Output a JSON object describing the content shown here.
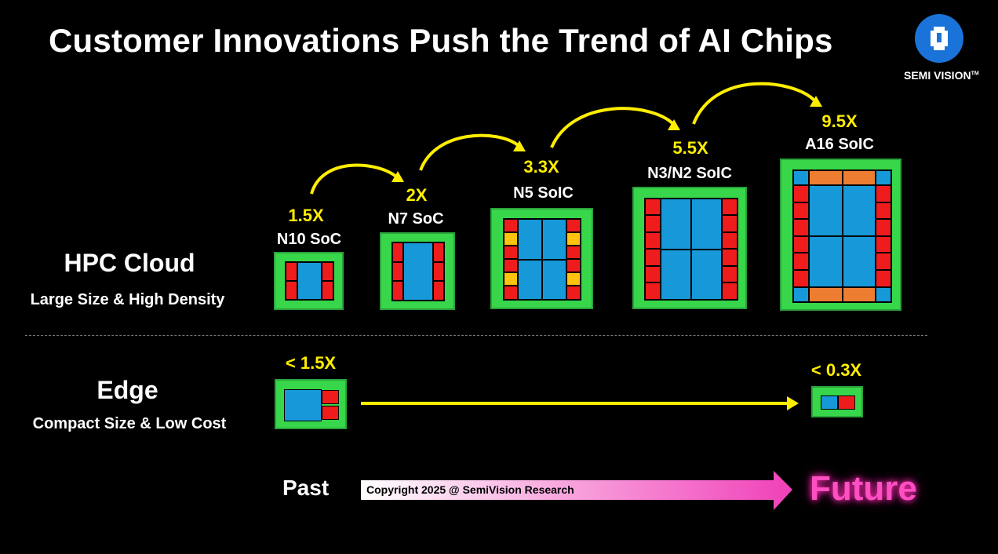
{
  "title": "Customer Innovations Push the Trend of AI Chips",
  "logo": {
    "text": "SEMI VISION",
    "tm": "TM"
  },
  "hpc": {
    "title": "HPC Cloud",
    "subtitle": "Large Size & High Density"
  },
  "edge": {
    "title": "Edge",
    "subtitle": "Compact Size & Low Cost"
  },
  "hpc_chips": [
    {
      "name": "N10 SoC",
      "multiplier": "1.5X"
    },
    {
      "name": "N7 SoC",
      "multiplier": "2X"
    },
    {
      "name": "N5 SoIC",
      "multiplier": "3.3X"
    },
    {
      "name": "N3/N2 SoIC",
      "multiplier": "5.5X"
    },
    {
      "name": "A16 SoIC",
      "multiplier": "9.5X"
    }
  ],
  "edge_chips": [
    {
      "multiplier": "< 1.5X"
    },
    {
      "multiplier": "< 0.3X"
    }
  ],
  "timeline": {
    "past": "Past",
    "future": "Future",
    "copyright": "Copyright 2025 @ SemiVision Research"
  },
  "colors": {
    "yellow": "#ffee00",
    "green": "#38d64a",
    "blue": "#1798d8",
    "red": "#ee1c1c",
    "pink": "#ff4fc2"
  }
}
